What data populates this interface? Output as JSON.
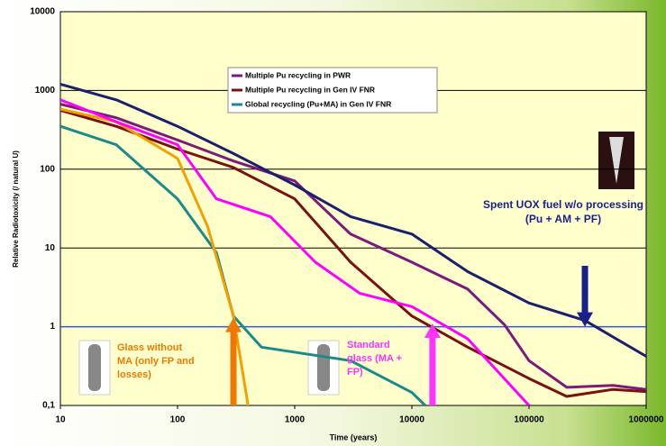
{
  "chart_data": {
    "type": "line",
    "x_label": "Time (years)",
    "y_label": "Relative Radiotoxicity (/ natural U)",
    "xscale": "log",
    "yscale": "log",
    "xlim": [
      10,
      1000000
    ],
    "ylim": [
      0.1,
      10000
    ],
    "xticks": [
      10,
      100,
      1000,
      10000,
      100000,
      1000000
    ],
    "yticks": [
      {
        "value": 0.1,
        "label": "0,1"
      },
      1,
      10,
      100,
      1000,
      10000
    ],
    "grid": true,
    "reference_line": {
      "y": 1,
      "color": "#3a5ad8"
    },
    "legend": "top-center",
    "series": [
      {
        "name": "Multiple Pu recycling in PWR",
        "color": "#7b1a7b",
        "x": [
          10,
          30,
          100,
          300,
          1000,
          3000,
          10000,
          30000,
          62000,
          100000,
          210000,
          520000,
          1000000
        ],
        "values": [
          670,
          450,
          235,
          127,
          71,
          15,
          6.6,
          3,
          1.05,
          0.37,
          0.17,
          0.18,
          0.16
        ]
      },
      {
        "name": "Multiple Pu recycling in Gen IV FNR",
        "color": "#7a1010",
        "x": [
          10,
          30,
          100,
          300,
          1000,
          3000,
          10000,
          30000,
          100000,
          210000,
          520000,
          1000000
        ],
        "values": [
          560,
          350,
          180,
          105,
          42,
          6.6,
          1.37,
          0.55,
          0.22,
          0.13,
          0.16,
          0.15
        ]
      },
      {
        "name": "Global recycling (Pu+MA) in Gen IV FNR",
        "color": "#1a8a8a",
        "x": [
          10,
          30,
          100,
          215,
          300,
          520,
          3000,
          10000,
          13000
        ],
        "values": [
          350,
          205,
          42,
          8.7,
          1.37,
          0.55,
          0.37,
          0.146,
          0.1
        ]
      },
      {
        "color": "#1a1f6e",
        "x": [
          10,
          30,
          100,
          300,
          1000,
          3000,
          10000,
          30000,
          100000,
          300000,
          1000000
        ],
        "values": [
          1200,
          760,
          350,
          158,
          63,
          25,
          15,
          5,
          2,
          1.2,
          0.42
        ]
      },
      {
        "color": "#f0a000",
        "x": [
          10,
          30,
          100,
          180,
          300,
          400
        ],
        "values": [
          580,
          400,
          137,
          19,
          1.37,
          0.1
        ]
      },
      {
        "color": "#ff00ff",
        "x": [
          10,
          30,
          100,
          215,
          620,
          1500,
          3600,
          10000,
          30000,
          100000
        ],
        "values": [
          760,
          400,
          205,
          42,
          25,
          6.6,
          2.65,
          1.8,
          0.7,
          0.1
        ]
      }
    ],
    "annotations": [
      {
        "text": [
          "Glass without",
          "MA (only FP and",
          "losses)"
        ],
        "color": "#f07800",
        "x": 300
      },
      {
        "text": [
          "Standard",
          "glass  (MA +",
          "FP)"
        ],
        "color": "#ff33ff",
        "x": 15000
      },
      {
        "text": [
          "Spent UOX fuel w/o processing",
          "(Pu + AM + PF)"
        ],
        "color": "#1a1f8e",
        "x": 300000
      }
    ]
  }
}
